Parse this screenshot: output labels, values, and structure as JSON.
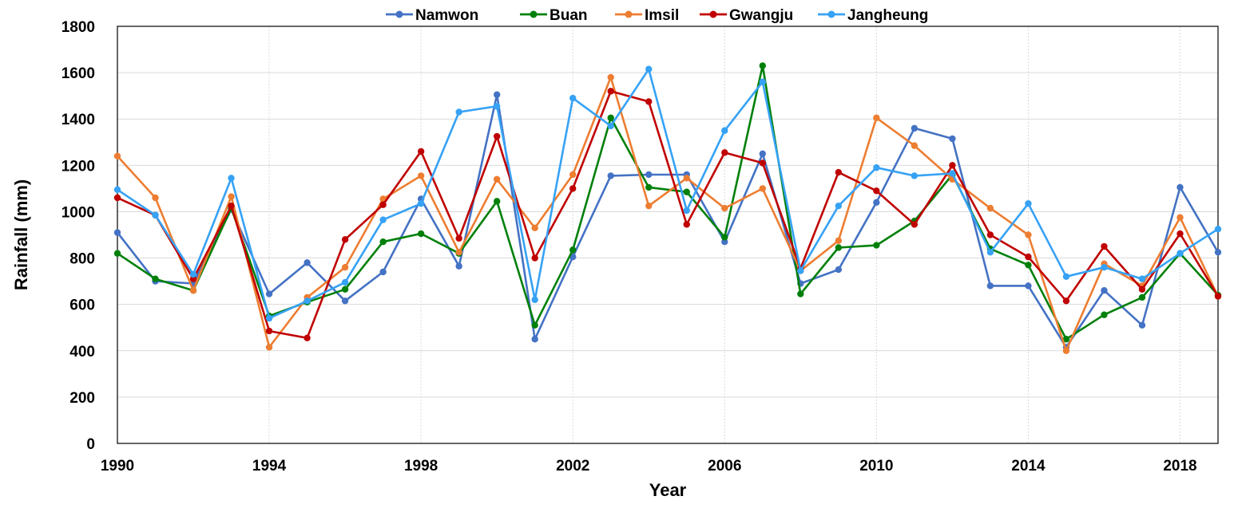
{
  "chart_data": {
    "type": "line",
    "title": "",
    "xlabel": "Year",
    "ylabel": "Rainfall (mm)",
    "xlim": [
      1990,
      2019
    ],
    "ylim": [
      0,
      1800
    ],
    "x_ticks": [
      1990,
      1994,
      1998,
      2002,
      2006,
      2010,
      2014,
      2018
    ],
    "y_ticks": [
      0,
      200,
      400,
      600,
      800,
      1000,
      1200,
      1400,
      1600,
      1800
    ],
    "x_grid": "dashed vertical gridlines",
    "y_grid": "horizontal gridlines",
    "legend_position": "top",
    "x": [
      1990,
      1991,
      1992,
      1993,
      1994,
      1995,
      1996,
      1997,
      1998,
      1999,
      2000,
      2001,
      2002,
      2003,
      2004,
      2005,
      2006,
      2007,
      2008,
      2009,
      2010,
      2011,
      2012,
      2013,
      2014,
      2015,
      2016,
      2017,
      2018,
      2019
    ],
    "series": [
      {
        "name": "Namwon",
        "color": "#4472C4",
        "values": [
          910,
          700,
          690,
          1010,
          645,
          780,
          615,
          740,
          1055,
          765,
          1505,
          450,
          805,
          1155,
          1160,
          1160,
          870,
          1250,
          690,
          750,
          1040,
          1360,
          1315,
          680,
          680,
          415,
          660,
          510,
          1105,
          825
        ]
      },
      {
        "name": "Buan",
        "color": "#00800A",
        "values": [
          820,
          710,
          660,
          1015,
          550,
          610,
          665,
          870,
          905,
          820,
          1045,
          510,
          835,
          1405,
          1105,
          1085,
          890,
          1630,
          645,
          845,
          855,
          960,
          1160,
          840,
          770,
          450,
          555,
          630,
          820,
          640
        ]
      },
      {
        "name": "Imsil",
        "color": "#ED7D31",
        "values": [
          1240,
          1060,
          660,
          1065,
          415,
          630,
          760,
          1055,
          1155,
          825,
          1140,
          930,
          1160,
          1580,
          1025,
          1145,
          1015,
          1100,
          745,
          875,
          1405,
          1285,
          1140,
          1015,
          900,
          400,
          775,
          680,
          975,
          635
        ]
      },
      {
        "name": "Gwangju",
        "color": "#C00000",
        "values": [
          1060,
          985,
          710,
          1025,
          485,
          455,
          880,
          1030,
          1260,
          885,
          1325,
          800,
          1100,
          1520,
          1475,
          945,
          1255,
          1210,
          755,
          1170,
          1090,
          945,
          1200,
          900,
          805,
          615,
          850,
          665,
          905,
          635
        ]
      },
      {
        "name": "Jangheung",
        "color": "#36A2F5",
        "values": [
          1095,
          985,
          730,
          1145,
          540,
          615,
          695,
          965,
          1035,
          1430,
          1455,
          620,
          1490,
          1370,
          1615,
          1005,
          1350,
          1560,
          745,
          1025,
          1190,
          1155,
          1165,
          825,
          1035,
          720,
          760,
          710,
          820,
          925
        ]
      }
    ]
  }
}
